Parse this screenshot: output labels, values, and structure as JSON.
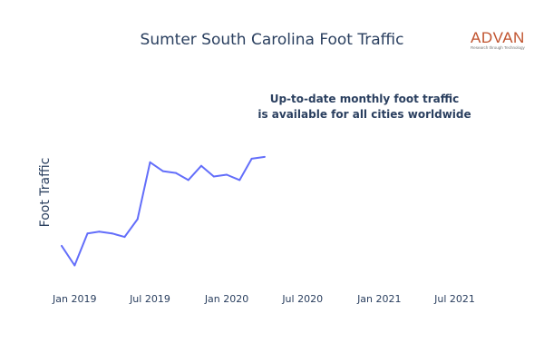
{
  "chart_data": {
    "type": "line",
    "title": "Sumter South Carolina Foot Traffic",
    "ylabel": "Foot Traffic",
    "xlabel": "",
    "x_ticks": [
      "Jan 2019",
      "Jul 2019",
      "Jan 2020",
      "Jul 2020",
      "Jan 2021",
      "Jul 2021"
    ],
    "x_range": [
      "2018-12-01",
      "2021-09-01"
    ],
    "y_range": [
      0,
      100
    ],
    "grid": false,
    "legend": "none",
    "series": [
      {
        "color": "#636efa",
        "x": [
          "2018-12",
          "2019-01",
          "2019-02",
          "2019-03",
          "2019-04",
          "2019-05",
          "2019-06",
          "2019-07",
          "2019-08",
          "2019-09",
          "2019-10",
          "2019-11",
          "2019-12",
          "2020-01",
          "2020-02",
          "2020-03",
          "2020-04"
        ],
        "y": [
          23,
          12,
          30,
          31,
          30,
          28,
          38,
          70,
          65,
          64,
          60,
          68,
          62,
          63,
          60,
          72,
          73
        ]
      }
    ]
  },
  "logo": {
    "name": "ADVAN",
    "tagline": "Research through Technology"
  },
  "annotation": {
    "line1": "Up-to-date monthly foot traffic",
    "line2": "is available for all cities worldwide"
  }
}
